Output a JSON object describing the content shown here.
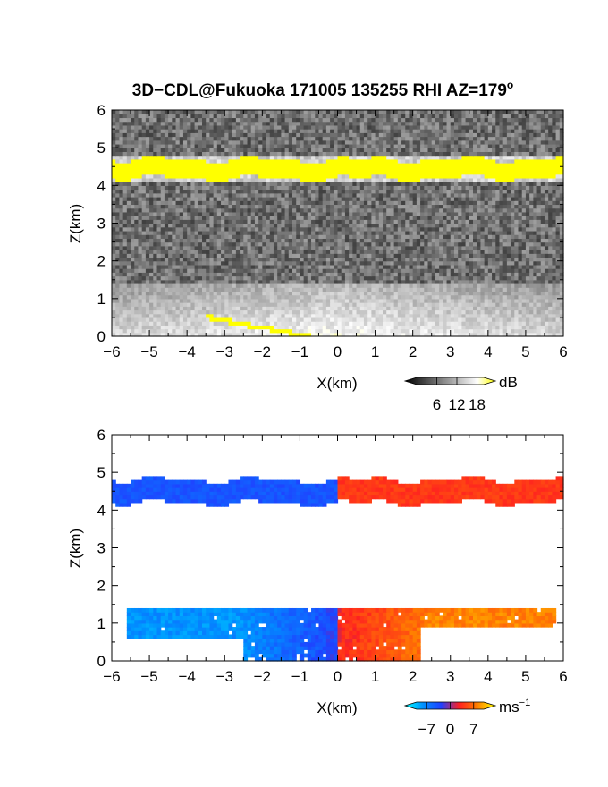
{
  "title": "3D−CDL@Fukuoka 171005 135255 RHI AZ=179",
  "title_sup": "o",
  "chart_data": [
    {
      "type": "heatmap",
      "quantity": "backscatter intensity",
      "xlabel": "X(km)",
      "ylabel": "Z(km)",
      "xlim": [
        -6,
        6
      ],
      "ylim": [
        0,
        6
      ],
      "x_ticks": [
        "−6",
        "−5",
        "−4",
        "−3",
        "−2",
        "−1",
        "0",
        "1",
        "2",
        "3",
        "4",
        "5",
        "6"
      ],
      "y_ticks": [
        "0",
        "1",
        "2",
        "3",
        "4",
        "5",
        "6"
      ],
      "colorbar": {
        "unit": "dB",
        "ticks": [
          "6",
          "12",
          "18"
        ],
        "range": [
          0,
          20
        ],
        "colors": [
          "#000000",
          "#404040",
          "#808080",
          "#bfbfbf",
          "#ffffff",
          "#ffff00"
        ]
      },
      "features": {
        "cloud_layer": {
          "z_base": 4.2,
          "z_top": 4.7,
          "value_db": 20
        },
        "boundary_layer": {
          "z_top": 1.4,
          "value_db": 10
        },
        "ground_clutter": {
          "x_start": -3.5,
          "x_end": -0.7,
          "value_db": 20
        }
      }
    },
    {
      "type": "heatmap",
      "quantity": "Doppler velocity",
      "xlabel": "X(km)",
      "ylabel": "Z(km)",
      "xlim": [
        -6,
        6
      ],
      "ylim": [
        0,
        6
      ],
      "x_ticks": [
        "−6",
        "−5",
        "−4",
        "−3",
        "−2",
        "−1",
        "0",
        "1",
        "2",
        "3",
        "4",
        "5",
        "6"
      ],
      "y_ticks": [
        "0",
        "1",
        "2",
        "3",
        "4",
        "5",
        "6"
      ],
      "colorbar": {
        "unit": "ms",
        "unit_sup": "−1",
        "ticks": [
          "−7",
          "0",
          "7"
        ],
        "range": [
          -10,
          10
        ],
        "colors": [
          "#00ffff",
          "#0090ff",
          "#2040ff",
          "#ff2020",
          "#ff8000",
          "#ffff00"
        ]
      },
      "features": {
        "cloud_layer": {
          "z_base": 4.2,
          "z_top": 4.8,
          "v_west": -3,
          "v_east": 3
        },
        "boundary_layer": {
          "x_start": -5.6,
          "x_end": 5.8,
          "z_top": 1.4,
          "v_west": -6,
          "v_east": 6
        }
      }
    }
  ]
}
